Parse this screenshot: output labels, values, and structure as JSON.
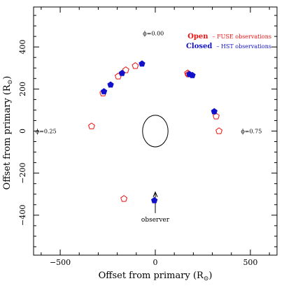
{
  "chart_data": {
    "type": "scatter",
    "xlabel": "Offset from primary (R",
    "ylabel": "Offset from primary (R",
    "label_subscript": "⊙",
    "xlim": [
      -640,
      640
    ],
    "ylim": [
      -590,
      590
    ],
    "x_ticks": [
      -500,
      0,
      500
    ],
    "y_ticks": [
      -400,
      -200,
      0,
      200,
      400
    ],
    "x_tick_labels": [
      "−500",
      "0",
      "500"
    ],
    "y_tick_labels": [
      "−400",
      "−200",
      "0",
      "200",
      "400"
    ],
    "grid": false,
    "legend": {
      "placement": "top-right",
      "entries": [
        {
          "prefix": "Open",
          "suffix": "– FUSE observations",
          "color": "#ee1111"
        },
        {
          "prefix": "Closed",
          "suffix": "– HST observations",
          "color": "#1111cc"
        }
      ]
    },
    "phase_labels": [
      {
        "text": "ϕ=0.00",
        "x": -10,
        "y": 465
      },
      {
        "text": "ϕ=0.25",
        "x": -575,
        "y": 0
      },
      {
        "text": "ϕ=0.75",
        "x": 505,
        "y": 0
      }
    ],
    "primary_star": {
      "cx": 0,
      "cy": 0,
      "rx": 67,
      "ry": 75
    },
    "observer": {
      "text": "observer",
      "x": 0,
      "y_from": -290,
      "y_to": -390
    },
    "series": [
      {
        "name": "FUSE observations",
        "style": "open",
        "color": "#ee1111",
        "x": [
          -335,
          -275,
          -195,
          -155,
          -105,
          170,
          175,
          320,
          335,
          -165
        ],
        "y": [
          23,
          180,
          260,
          290,
          310,
          275,
          270,
          70,
          0,
          -322
        ]
      },
      {
        "name": "HST observations",
        "style": "closed",
        "color": "#1111cc",
        "x": [
          -270,
          -235,
          -175,
          -70,
          180,
          195,
          310,
          -5
        ],
        "y": [
          188,
          220,
          275,
          320,
          270,
          265,
          93,
          -330
        ]
      }
    ]
  }
}
